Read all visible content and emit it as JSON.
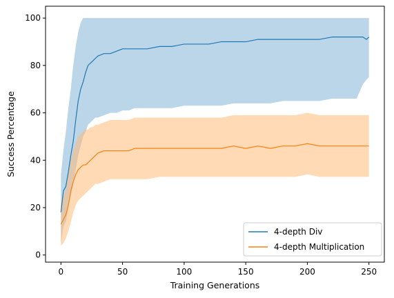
{
  "chart_data": {
    "type": "line",
    "xlabel": "Training Generations",
    "ylabel": "Success Percentage",
    "xlim": [
      -12.5,
      262.5
    ],
    "ylim": [
      -3,
      105
    ],
    "x_ticks": [
      0,
      50,
      100,
      150,
      200,
      250
    ],
    "y_ticks": [
      0,
      20,
      40,
      60,
      80,
      100
    ],
    "grid": false,
    "legend_position": "lower right",
    "series": [
      {
        "name": "4-depth Div",
        "color": "#1f77b4",
        "band_color": "#1f77b4",
        "x": [
          0,
          2,
          4,
          6,
          8,
          10,
          12,
          14,
          16,
          18,
          20,
          22,
          24,
          26,
          28,
          30,
          35,
          40,
          45,
          50,
          55,
          60,
          70,
          80,
          90,
          100,
          110,
          120,
          130,
          140,
          150,
          160,
          170,
          180,
          190,
          200,
          210,
          220,
          230,
          240,
          245,
          248,
          250
        ],
        "mean": [
          18,
          27,
          29,
          35,
          42,
          48,
          57,
          65,
          70,
          73,
          77,
          80,
          81,
          82,
          83,
          84,
          85,
          85,
          86,
          87,
          87,
          87,
          87,
          88,
          88,
          89,
          89,
          89,
          90,
          90,
          90,
          91,
          91,
          91,
          91,
          91,
          91,
          92,
          92,
          92,
          92,
          91,
          92
        ],
        "upper": [
          34,
          44,
          52,
          62,
          70,
          80,
          88,
          94,
          98,
          100,
          100,
          100,
          100,
          100,
          100,
          100,
          100,
          100,
          100,
          100,
          100,
          100,
          100,
          100,
          100,
          100,
          100,
          100,
          100,
          100,
          100,
          100,
          100,
          100,
          100,
          100,
          100,
          100,
          100,
          100,
          100,
          100,
          100
        ],
        "lower": [
          5,
          12,
          14,
          20,
          25,
          30,
          36,
          42,
          46,
          50,
          52,
          55,
          56,
          57,
          58,
          58,
          59,
          60,
          60,
          61,
          61,
          62,
          62,
          62,
          62,
          63,
          63,
          63,
          63,
          64,
          64,
          64,
          64,
          65,
          65,
          65,
          65,
          66,
          66,
          66,
          72,
          74,
          75
        ]
      },
      {
        "name": "4-depth Multiplication",
        "color": "#ff7f0e",
        "band_color": "#ffbb78",
        "x": [
          0,
          2,
          4,
          6,
          8,
          10,
          12,
          14,
          16,
          18,
          20,
          22,
          24,
          26,
          28,
          30,
          35,
          40,
          45,
          50,
          55,
          60,
          70,
          80,
          90,
          100,
          110,
          120,
          130,
          140,
          150,
          160,
          170,
          180,
          190,
          200,
          210,
          220,
          230,
          240,
          245,
          248,
          250
        ],
        "mean": [
          13,
          15,
          17,
          21,
          27,
          31,
          34,
          36,
          37,
          38,
          38,
          39,
          40,
          41,
          42,
          43,
          44,
          44,
          44,
          44,
          44,
          45,
          45,
          45,
          45,
          45,
          45,
          45,
          45,
          46,
          45,
          46,
          45,
          46,
          46,
          47,
          46,
          46,
          46,
          46,
          46,
          46,
          46
        ],
        "upper": [
          22,
          25,
          28,
          34,
          40,
          44,
          47,
          50,
          51,
          52,
          53,
          53,
          54,
          54,
          55,
          55,
          56,
          57,
          57,
          57,
          57,
          58,
          58,
          58,
          58,
          58,
          58,
          58,
          58,
          59,
          59,
          59,
          59,
          59,
          59,
          60,
          59,
          59,
          59,
          59,
          59,
          59,
          59
        ],
        "lower": [
          4,
          5,
          7,
          10,
          14,
          18,
          21,
          23,
          24,
          25,
          26,
          27,
          28,
          29,
          30,
          30,
          31,
          32,
          32,
          32,
          32,
          32,
          32,
          33,
          33,
          33,
          33,
          33,
          33,
          33,
          33,
          33,
          33,
          33,
          33,
          34,
          33,
          33,
          33,
          33,
          33,
          33,
          33
        ]
      }
    ]
  }
}
